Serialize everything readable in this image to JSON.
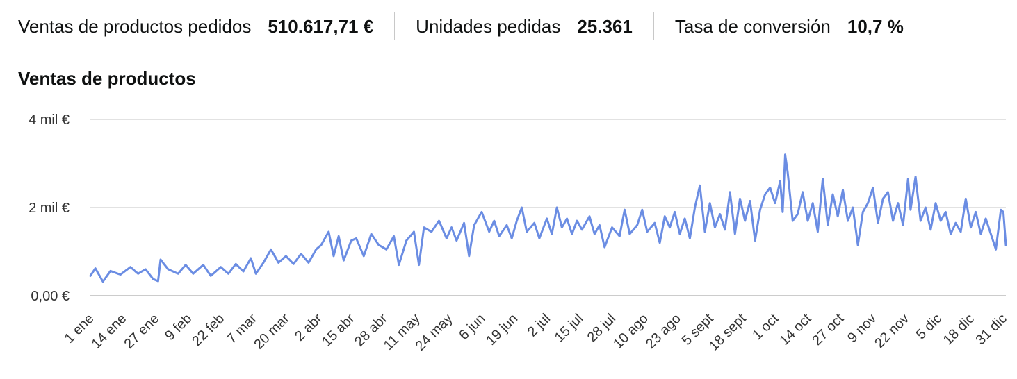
{
  "metrics": [
    {
      "label": "Ventas de productos pedidos",
      "value": "510.617,71 €"
    },
    {
      "label": "Unidades pedidas",
      "value": "25.361"
    },
    {
      "label": "Tasa de conversión",
      "value": "10,7 %"
    }
  ],
  "colors": {
    "line": "#6b8de3",
    "grid": "#d9d9d9",
    "axis": "#cccccc"
  },
  "chart_data": {
    "type": "line",
    "title": "Ventas de productos",
    "xlabel": "",
    "ylabel": "",
    "ylim": [
      0,
      4000
    ],
    "yticks": [
      {
        "value": 0,
        "label": "0,00 €"
      },
      {
        "value": 2000,
        "label": "2 mil €"
      },
      {
        "value": 4000,
        "label": "4 mil €"
      }
    ],
    "xticks": [
      {
        "day": 0,
        "label": "1 ene"
      },
      {
        "day": 13,
        "label": "14 ene"
      },
      {
        "day": 26,
        "label": "27 ene"
      },
      {
        "day": 39,
        "label": "9 feb"
      },
      {
        "day": 52,
        "label": "22 feb"
      },
      {
        "day": 65,
        "label": "7 mar"
      },
      {
        "day": 78,
        "label": "20 mar"
      },
      {
        "day": 91,
        "label": "2 abr"
      },
      {
        "day": 104,
        "label": "15 abr"
      },
      {
        "day": 117,
        "label": "28 abr"
      },
      {
        "day": 130,
        "label": "11 may"
      },
      {
        "day": 143,
        "label": "24 may"
      },
      {
        "day": 156,
        "label": "6 jun"
      },
      {
        "day": 169,
        "label": "19 jun"
      },
      {
        "day": 182,
        "label": "2 jul"
      },
      {
        "day": 195,
        "label": "15 jul"
      },
      {
        "day": 208,
        "label": "28 jul"
      },
      {
        "day": 221,
        "label": "10 ago"
      },
      {
        "day": 234,
        "label": "23 ago"
      },
      {
        "day": 247,
        "label": "5 sept"
      },
      {
        "day": 260,
        "label": "18 sept"
      },
      {
        "day": 273,
        "label": "1 oct"
      },
      {
        "day": 286,
        "label": "14 oct"
      },
      {
        "day": 299,
        "label": "27 oct"
      },
      {
        "day": 312,
        "label": "9 nov"
      },
      {
        "day": 325,
        "label": "22 nov"
      },
      {
        "day": 338,
        "label": "5 dic"
      },
      {
        "day": 351,
        "label": "18 dic"
      },
      {
        "day": 364,
        "label": "31 dic"
      }
    ],
    "series": [
      {
        "name": "Ventas de productos",
        "keypoints": [
          [
            0,
            450
          ],
          [
            2,
            620
          ],
          [
            5,
            320
          ],
          [
            8,
            560
          ],
          [
            12,
            480
          ],
          [
            16,
            650
          ],
          [
            19,
            500
          ],
          [
            22,
            600
          ],
          [
            25,
            380
          ],
          [
            27,
            330
          ],
          [
            28,
            820
          ],
          [
            31,
            600
          ],
          [
            35,
            500
          ],
          [
            38,
            700
          ],
          [
            41,
            500
          ],
          [
            45,
            700
          ],
          [
            48,
            450
          ],
          [
            52,
            650
          ],
          [
            55,
            500
          ],
          [
            58,
            720
          ],
          [
            61,
            550
          ],
          [
            64,
            850
          ],
          [
            66,
            500
          ],
          [
            69,
            750
          ],
          [
            72,
            1050
          ],
          [
            75,
            750
          ],
          [
            78,
            900
          ],
          [
            81,
            720
          ],
          [
            84,
            950
          ],
          [
            87,
            750
          ],
          [
            90,
            1050
          ],
          [
            92,
            1150
          ],
          [
            95,
            1450
          ],
          [
            97,
            900
          ],
          [
            99,
            1350
          ],
          [
            101,
            800
          ],
          [
            104,
            1250
          ],
          [
            106,
            1300
          ],
          [
            109,
            900
          ],
          [
            112,
            1400
          ],
          [
            115,
            1150
          ],
          [
            118,
            1050
          ],
          [
            121,
            1350
          ],
          [
            123,
            700
          ],
          [
            126,
            1250
          ],
          [
            129,
            1450
          ],
          [
            131,
            700
          ],
          [
            133,
            1550
          ],
          [
            136,
            1450
          ],
          [
            139,
            1700
          ],
          [
            142,
            1300
          ],
          [
            144,
            1550
          ],
          [
            146,
            1250
          ],
          [
            149,
            1650
          ],
          [
            151,
            900
          ],
          [
            153,
            1600
          ],
          [
            156,
            1900
          ],
          [
            159,
            1450
          ],
          [
            161,
            1700
          ],
          [
            163,
            1350
          ],
          [
            166,
            1600
          ],
          [
            168,
            1300
          ],
          [
            170,
            1700
          ],
          [
            172,
            2000
          ],
          [
            174,
            1450
          ],
          [
            177,
            1650
          ],
          [
            179,
            1300
          ],
          [
            182,
            1750
          ],
          [
            184,
            1400
          ],
          [
            186,
            2000
          ],
          [
            188,
            1550
          ],
          [
            190,
            1750
          ],
          [
            192,
            1400
          ],
          [
            194,
            1700
          ],
          [
            196,
            1500
          ],
          [
            199,
            1800
          ],
          [
            201,
            1400
          ],
          [
            203,
            1600
          ],
          [
            205,
            1100
          ],
          [
            208,
            1550
          ],
          [
            211,
            1350
          ],
          [
            213,
            1950
          ],
          [
            215,
            1400
          ],
          [
            218,
            1600
          ],
          [
            220,
            1950
          ],
          [
            222,
            1450
          ],
          [
            225,
            1650
          ],
          [
            227,
            1200
          ],
          [
            229,
            1800
          ],
          [
            231,
            1550
          ],
          [
            233,
            1900
          ],
          [
            235,
            1400
          ],
          [
            237,
            1750
          ],
          [
            239,
            1300
          ],
          [
            241,
            2000
          ],
          [
            243,
            2500
          ],
          [
            245,
            1450
          ],
          [
            247,
            2100
          ],
          [
            249,
            1550
          ],
          [
            251,
            1850
          ],
          [
            253,
            1500
          ],
          [
            255,
            2350
          ],
          [
            257,
            1400
          ],
          [
            259,
            2200
          ],
          [
            261,
            1700
          ],
          [
            263,
            2150
          ],
          [
            265,
            1250
          ],
          [
            267,
            1950
          ],
          [
            269,
            2300
          ],
          [
            271,
            2450
          ],
          [
            273,
            2100
          ],
          [
            275,
            2600
          ],
          [
            276,
            1900
          ],
          [
            277,
            3200
          ],
          [
            278,
            2800
          ],
          [
            280,
            1700
          ],
          [
            282,
            1850
          ],
          [
            284,
            2350
          ],
          [
            286,
            1700
          ],
          [
            288,
            2100
          ],
          [
            290,
            1450
          ],
          [
            292,
            2650
          ],
          [
            294,
            1600
          ],
          [
            296,
            2300
          ],
          [
            298,
            1800
          ],
          [
            300,
            2400
          ],
          [
            302,
            1700
          ],
          [
            304,
            2000
          ],
          [
            306,
            1150
          ],
          [
            308,
            1900
          ],
          [
            310,
            2100
          ],
          [
            312,
            2450
          ],
          [
            314,
            1650
          ],
          [
            316,
            2200
          ],
          [
            318,
            2350
          ],
          [
            320,
            1700
          ],
          [
            322,
            2100
          ],
          [
            324,
            1600
          ],
          [
            326,
            2650
          ],
          [
            327,
            1950
          ],
          [
            329,
            2700
          ],
          [
            331,
            1700
          ],
          [
            333,
            2000
          ],
          [
            335,
            1500
          ],
          [
            337,
            2100
          ],
          [
            339,
            1700
          ],
          [
            341,
            1900
          ],
          [
            343,
            1400
          ],
          [
            345,
            1650
          ],
          [
            347,
            1450
          ],
          [
            349,
            2200
          ],
          [
            351,
            1550
          ],
          [
            353,
            1900
          ],
          [
            355,
            1400
          ],
          [
            357,
            1750
          ],
          [
            359,
            1400
          ],
          [
            361,
            1050
          ],
          [
            363,
            1950
          ],
          [
            364,
            1900
          ],
          [
            365,
            1150
          ]
        ]
      }
    ]
  }
}
